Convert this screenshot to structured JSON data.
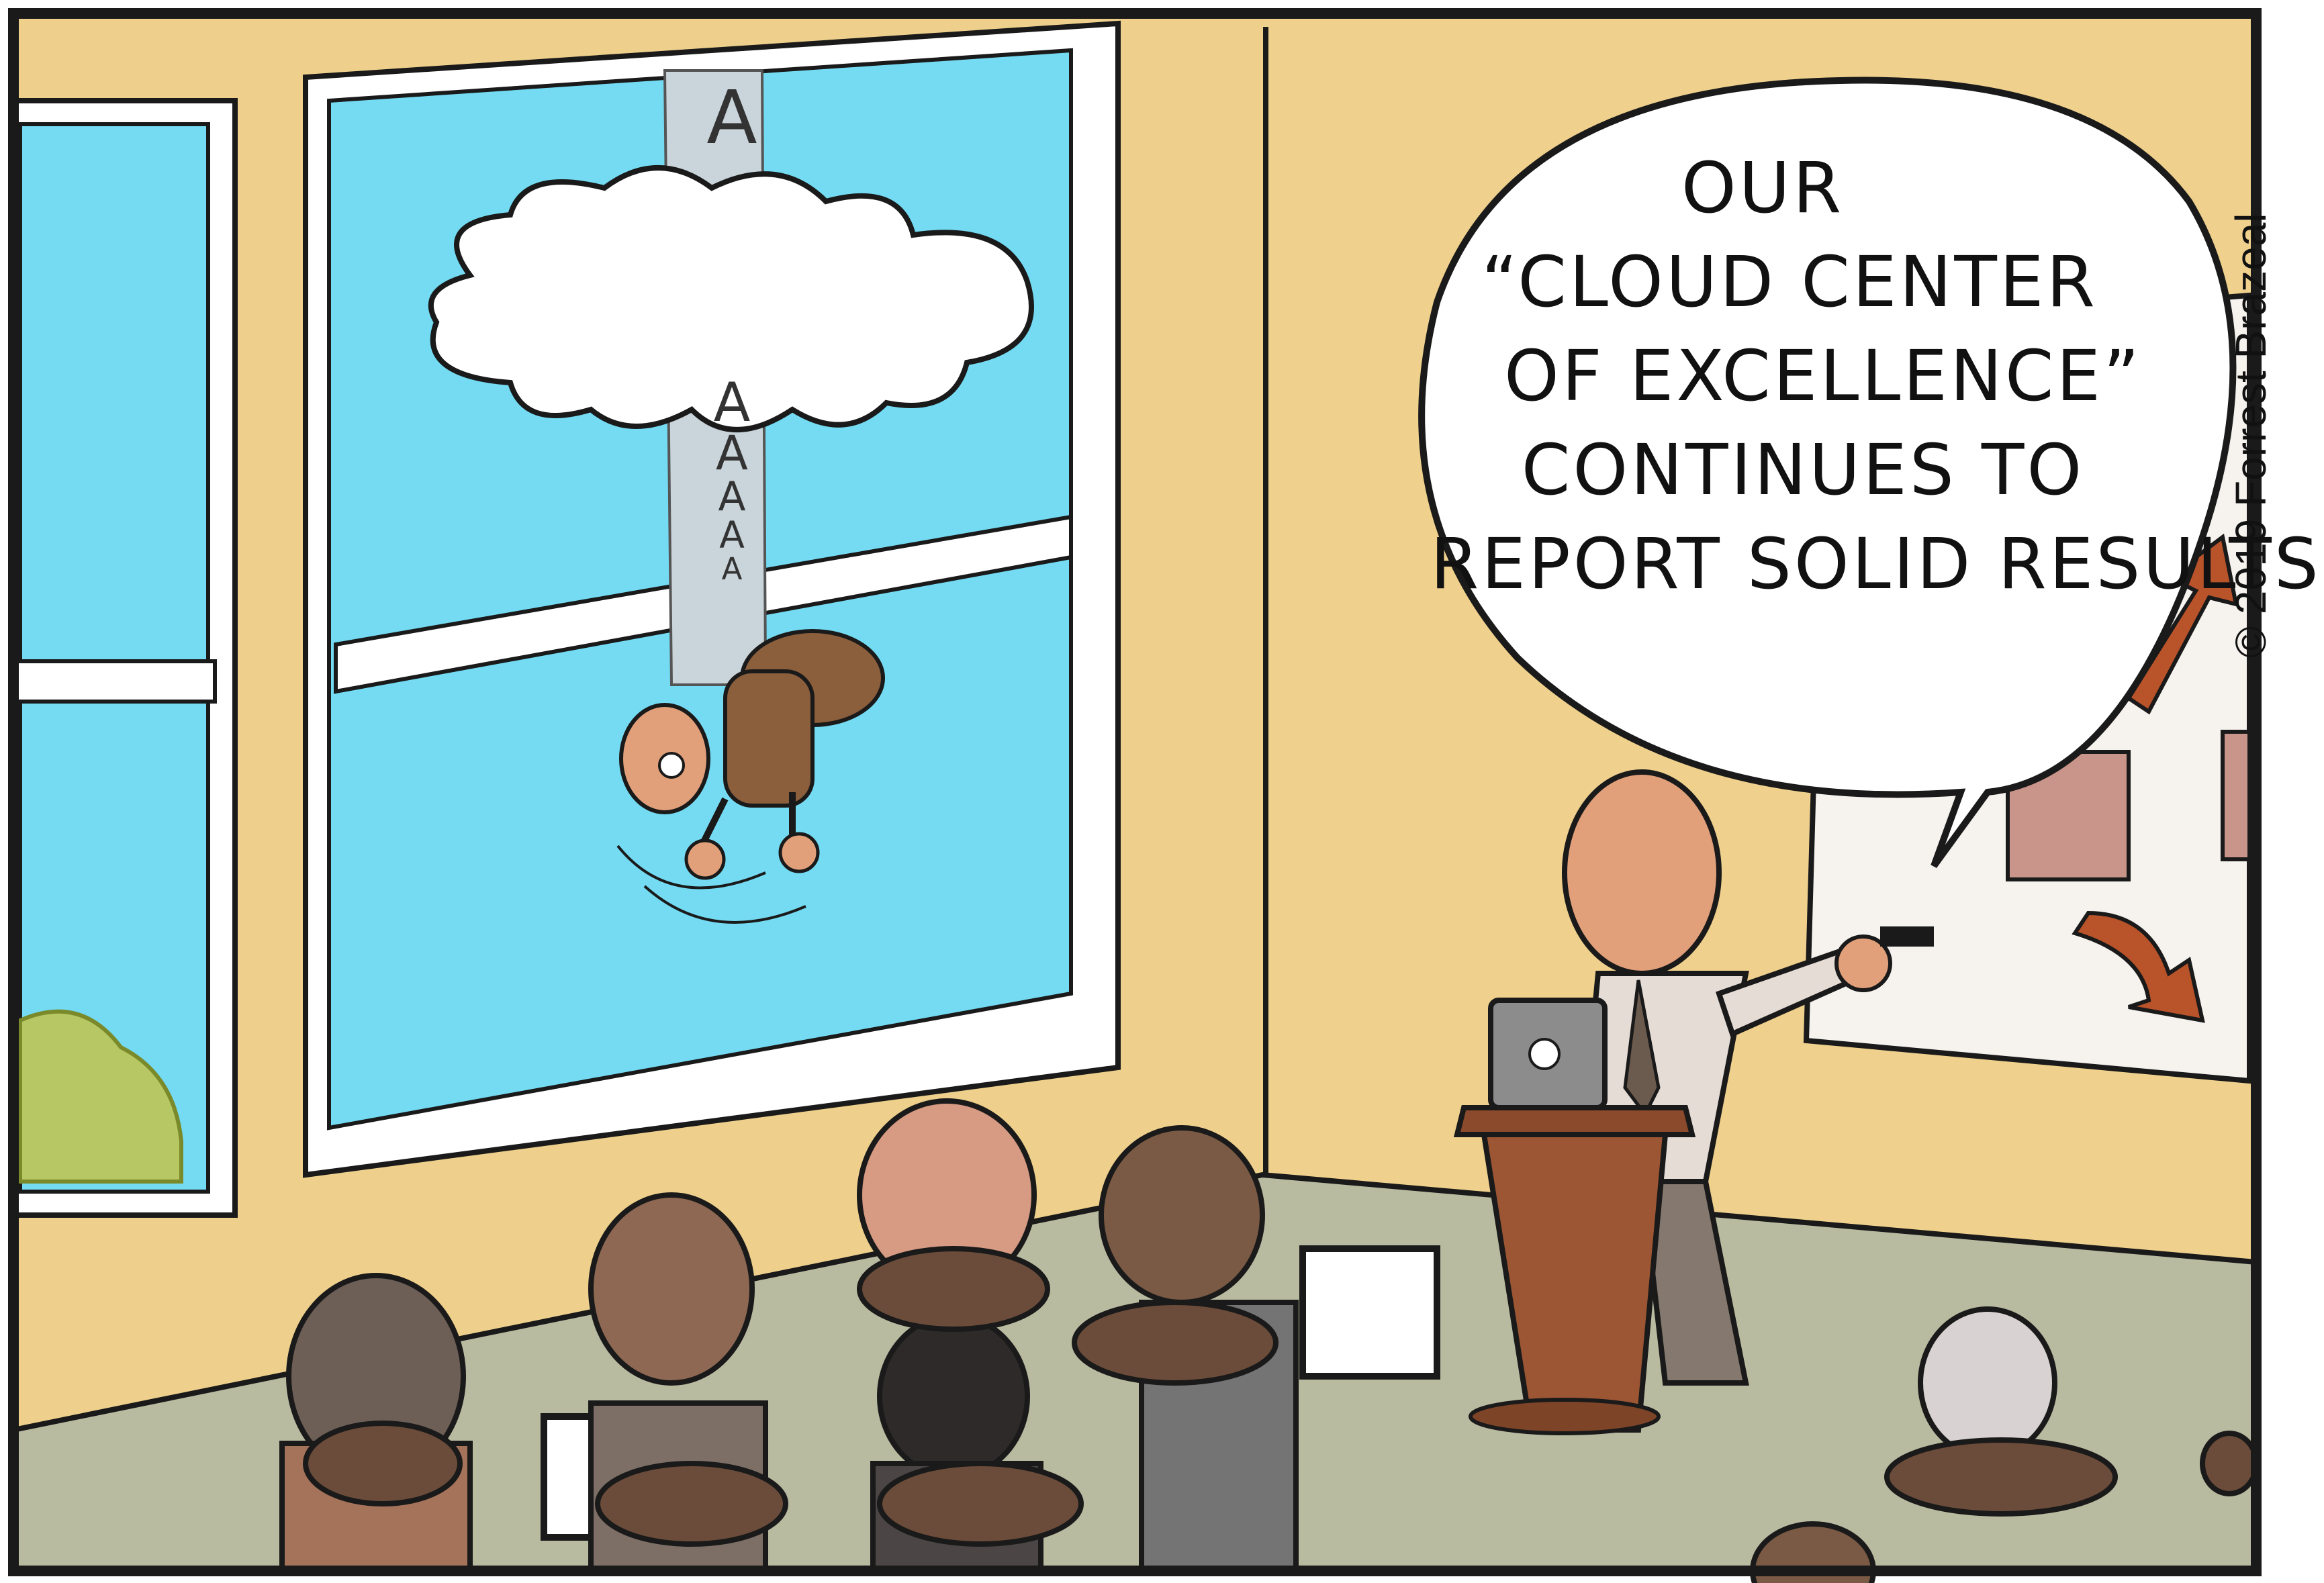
{
  "speech_bubble": {
    "lines": [
      "OUR",
      "“CLOUD CENTER",
      "OF EXCELLENCE”",
      "CONTINUES TO",
      "REPORT SOLID RESULTS"
    ]
  },
  "falling_scream": {
    "letters": [
      "A",
      "A",
      "A",
      "A",
      "A",
      "A"
    ]
  },
  "copyright": "© 2019 Forrest Brazeal",
  "colors": {
    "wall": "#eed08c",
    "sky": "#74dbf3",
    "floor": "#b9bba0",
    "frame": "#1a1a1a",
    "brown": "#7a5236",
    "skin": "#e2a07a"
  }
}
